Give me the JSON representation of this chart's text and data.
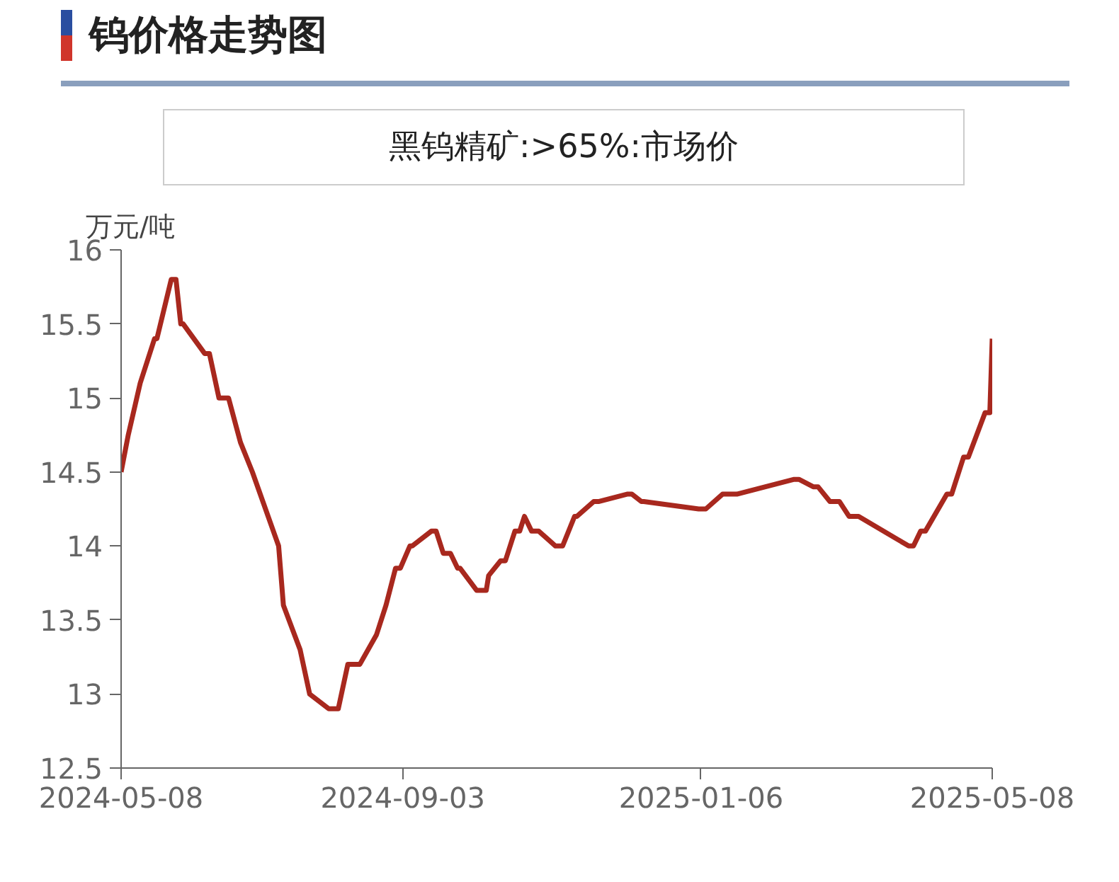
{
  "chart_data": {
    "type": "line",
    "title": "钨价格走势图",
    "subtitle": "黑钨精矿:>65%:市场价",
    "ylabel": "万元/吨",
    "x": [
      "2024-05-08",
      "2024-05-11",
      "2024-05-16",
      "2024-05-22",
      "2024-05-23",
      "2024-05-29",
      "2024-05-31",
      "2024-06-02",
      "2024-06-03",
      "2024-06-12",
      "2024-06-14",
      "2024-06-18",
      "2024-06-22",
      "2024-06-27",
      "2024-07-02",
      "2024-07-13",
      "2024-07-15",
      "2024-07-22",
      "2024-07-26",
      "2024-08-03",
      "2024-08-07",
      "2024-08-11",
      "2024-08-16",
      "2024-08-23",
      "2024-08-27",
      "2024-08-31",
      "2024-09-02",
      "2024-09-06",
      "2024-09-07",
      "2024-09-15",
      "2024-09-17",
      "2024-09-20",
      "2024-09-23",
      "2024-09-26",
      "2024-09-27",
      "2024-10-04",
      "2024-10-08",
      "2024-10-09",
      "2024-10-14",
      "2024-10-16",
      "2024-10-20",
      "2024-10-22",
      "2024-10-24",
      "2024-10-27",
      "2024-10-30",
      "2024-11-06",
      "2024-11-09",
      "2024-11-14",
      "2024-11-15",
      "2024-11-22",
      "2024-11-24",
      "2024-12-06",
      "2024-12-08",
      "2024-12-12",
      "2024-12-13",
      "2025-01-05",
      "2025-01-08",
      "2025-01-15",
      "2025-01-21",
      "2025-02-14",
      "2025-02-16",
      "2025-02-22",
      "2025-02-24",
      "2025-03-01",
      "2025-03-05",
      "2025-03-09",
      "2025-03-13",
      "2025-04-03",
      "2025-04-05",
      "2025-04-08",
      "2025-04-10",
      "2025-04-19",
      "2025-04-21",
      "2025-04-26",
      "2025-04-28",
      "2025-05-05",
      "2025-05-07",
      "2025-05-08"
    ],
    "series": [
      {
        "color": "#a8281e",
        "values": [
          14.5,
          14.75,
          15.1,
          15.4,
          15.4,
          15.8,
          15.8,
          15.5,
          15.5,
          15.3,
          15.3,
          15.0,
          15.0,
          14.7,
          14.5,
          14.0,
          13.6,
          13.3,
          13.0,
          12.9,
          12.9,
          13.2,
          13.2,
          13.4,
          13.6,
          13.85,
          13.85,
          14.0,
          14.0,
          14.1,
          14.1,
          13.95,
          13.95,
          13.85,
          13.85,
          13.7,
          13.7,
          13.8,
          13.9,
          13.9,
          14.1,
          14.1,
          14.2,
          14.1,
          14.1,
          14.0,
          14.0,
          14.2,
          14.2,
          14.3,
          14.3,
          14.35,
          14.35,
          14.3,
          14.3,
          14.25,
          14.25,
          14.35,
          14.35,
          14.45,
          14.45,
          14.4,
          14.4,
          14.3,
          14.3,
          14.2,
          14.2,
          14.0,
          14.0,
          14.1,
          14.1,
          14.35,
          14.35,
          14.6,
          14.6,
          14.9,
          14.9,
          15.4
        ]
      }
    ],
    "xlim": [
      "2024-05-08",
      "2025-05-08"
    ],
    "xticks": [
      {
        "value": "2024-05-08",
        "label": "2024-05-08"
      },
      {
        "value": "2024-09-03",
        "label": "2024-09-03"
      },
      {
        "value": "2025-01-06",
        "label": "2025-01-06"
      },
      {
        "value": "2025-05-08",
        "label": "2025-05-08"
      }
    ],
    "ylim": [
      12.5,
      16
    ],
    "yticks": [
      12.5,
      13,
      13.5,
      14,
      14.5,
      15,
      15.5,
      16
    ],
    "grid": false,
    "marker": "none",
    "line_style": "solid"
  }
}
